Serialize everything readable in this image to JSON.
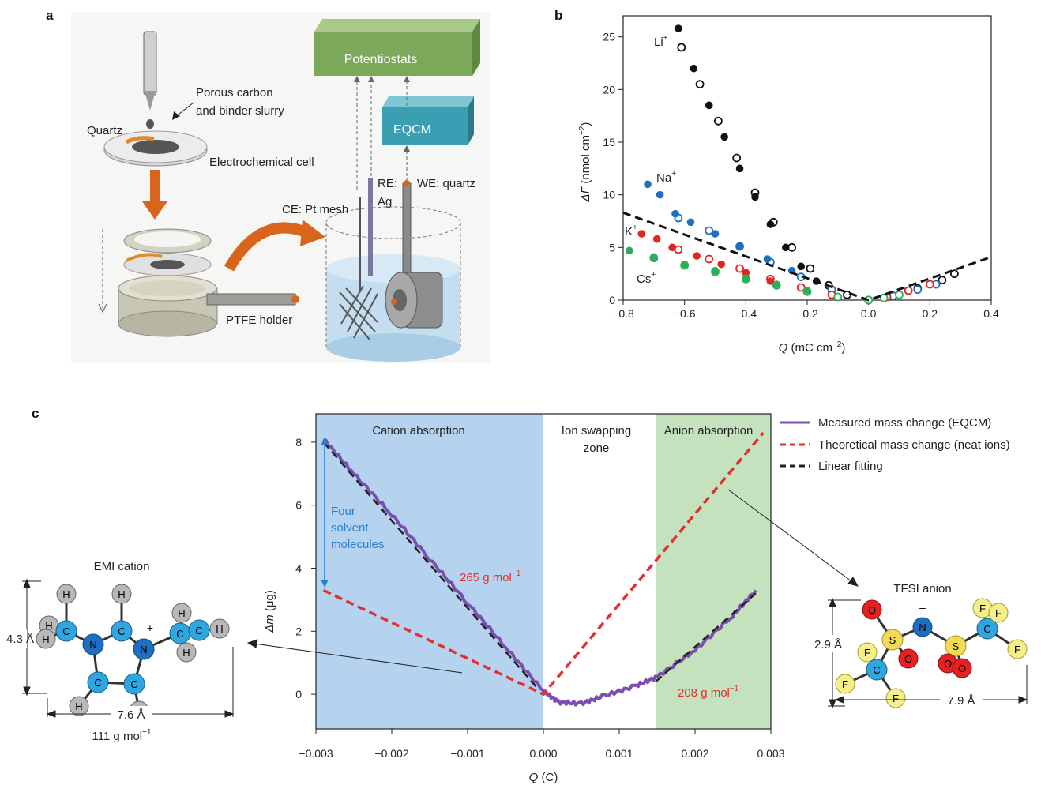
{
  "panels": {
    "a": {
      "letter": "a",
      "labels": {
        "potentiostats": "Potentiostats",
        "eqcm": "EQCM",
        "porous_1": "Porous carbon",
        "porous_2": "and binder slurry",
        "quartz": "Quartz",
        "electrochemical_cell": "Electrochemical cell",
        "ptfe_holder": "PTFE holder",
        "ce": "CE: Pt mesh",
        "re_1": "RE:",
        "re_2": "Ag",
        "we": "WE: quartz"
      },
      "colors": {
        "potentiostats": "#7ca85a",
        "eqcm": "#3a9fb3",
        "arrow": "#d9651c",
        "liquid": "#bfdcee"
      }
    },
    "b": {
      "letter": "b",
      "ion_labels": {
        "li": "Li",
        "na": "Na",
        "k": "K",
        "cs": "Cs",
        "plus": "+"
      },
      "xlabel": {
        "sym": "Q",
        "unit": " (mC cm",
        "exp": "−2",
        "close": ")"
      },
      "ylabel": {
        "sym": "ΔΓ",
        "unit": " (nmol cm",
        "exp": "−2",
        "close": ")"
      }
    },
    "c": {
      "letter": "c",
      "zones": {
        "cation": "Cation absorption",
        "swap_1": "Ion swapping",
        "swap_2": "zone",
        "anion": "Anion absorption"
      },
      "legend": [
        "Measured mass change (EQCM)",
        "Theoretical mass change (neat ions)",
        "Linear fitting"
      ],
      "annotations": {
        "solvent_1": "Four",
        "solvent_2": "solvent",
        "solvent_3": "molecules",
        "mw_cation": "265 g mol",
        "mw_anion": "208 g mol",
        "exp_neg1": "−1"
      },
      "xlabel": {
        "sym": "Q",
        "unit": " (C)"
      },
      "ylabel": {
        "sym": "Δm",
        "unit": " (μg)"
      },
      "emi": {
        "title": "EMI cation",
        "height": "4.3 Å",
        "width": "7.6 Å",
        "mw": "111 g mol",
        "exp": "−1"
      },
      "tfsi": {
        "title": "TFSI anion",
        "height": "2.9 Å",
        "width": "7.9 Å",
        "minus": "–"
      },
      "colors": {
        "cation_zone": "#b5d3ee",
        "anion_zone": "#c4e2bd",
        "measured": "#7b4fb0",
        "theory": "#e2312d",
        "fit": "#222222"
      }
    }
  },
  "chart_data": [
    {
      "type": "scatter",
      "panel": "b",
      "xlabel": "Q (mC cm−2)",
      "ylabel": "ΔΓ (nmol cm−2)",
      "xlim": [
        -0.8,
        0.4
      ],
      "ylim": [
        0,
        27
      ],
      "xticks": [
        "−0.8",
        "−0.6",
        "−0.4",
        "−0.2",
        "0.0",
        "0.2",
        "0.4"
      ],
      "yticks": [
        "0",
        "5",
        "10",
        "15",
        "20",
        "25"
      ],
      "series": [
        {
          "name": "Li+",
          "color": "#111111",
          "filled": [
            [
              -0.62,
              25.8
            ],
            [
              -0.57,
              22.0
            ],
            [
              -0.52,
              18.5
            ],
            [
              -0.47,
              15.5
            ],
            [
              -0.42,
              12.5
            ],
            [
              -0.37,
              9.8
            ],
            [
              -0.32,
              7.2
            ],
            [
              -0.27,
              5.0
            ],
            [
              -0.22,
              3.2
            ],
            [
              -0.17,
              1.8
            ],
            [
              -0.12,
              0.8
            ]
          ],
          "open": [
            [
              -0.61,
              24.0
            ],
            [
              -0.55,
              20.5
            ],
            [
              -0.49,
              17.0
            ],
            [
              -0.43,
              13.5
            ],
            [
              -0.37,
              10.2
            ],
            [
              -0.31,
              7.4
            ],
            [
              -0.25,
              5.0
            ],
            [
              -0.19,
              3.0
            ],
            [
              -0.13,
              1.4
            ],
            [
              -0.07,
              0.5
            ],
            [
              0.0,
              0.0
            ],
            [
              0.08,
              0.4
            ],
            [
              0.16,
              1.1
            ],
            [
              0.24,
              1.9
            ],
            [
              0.28,
              2.5
            ]
          ]
        },
        {
          "name": "Na+",
          "color": "#1f6fc0",
          "filled": [
            [
              -0.72,
              11.0
            ],
            [
              -0.68,
              10.0
            ],
            [
              -0.63,
              8.2
            ],
            [
              -0.58,
              7.4
            ],
            [
              -0.5,
              6.3
            ],
            [
              -0.42,
              5.1
            ],
            [
              -0.33,
              3.9
            ],
            [
              -0.25,
              2.8
            ]
          ],
          "open": [
            [
              -0.62,
              7.8
            ],
            [
              -0.52,
              6.6
            ],
            [
              -0.42,
              5.1
            ],
            [
              -0.32,
              3.6
            ],
            [
              -0.22,
              2.2
            ],
            [
              -0.12,
              1.0
            ],
            [
              0.0,
              0.0
            ],
            [
              0.08,
              0.4
            ],
            [
              0.16,
              1.0
            ],
            [
              0.22,
              1.5
            ]
          ]
        },
        {
          "name": "K+",
          "color": "#e2251d",
          "filled": [
            [
              -0.74,
              6.3
            ],
            [
              -0.69,
              5.8
            ],
            [
              -0.64,
              5.0
            ],
            [
              -0.56,
              4.2
            ],
            [
              -0.48,
              3.4
            ],
            [
              -0.4,
              2.6
            ],
            [
              -0.32,
              1.8
            ]
          ],
          "open": [
            [
              -0.62,
              4.8
            ],
            [
              -0.52,
              3.9
            ],
            [
              -0.42,
              3.0
            ],
            [
              -0.32,
              2.0
            ],
            [
              -0.22,
              1.2
            ],
            [
              -0.12,
              0.5
            ],
            [
              0.0,
              0.0
            ],
            [
              0.06,
              0.3
            ],
            [
              0.13,
              0.9
            ],
            [
              0.2,
              1.5
            ]
          ]
        },
        {
          "name": "Cs+",
          "color": "#2aae5c",
          "filled": [
            [
              -0.78,
              4.7
            ],
            [
              -0.7,
              4.1
            ],
            [
              -0.6,
              3.4
            ],
            [
              -0.5,
              2.8
            ],
            [
              -0.4,
              2.1
            ],
            [
              -0.3,
              1.5
            ],
            [
              -0.2,
              0.9
            ]
          ],
          "open": [
            [
              -0.7,
              4.0
            ],
            [
              -0.6,
              3.3
            ],
            [
              -0.5,
              2.7
            ],
            [
              -0.4,
              2.0
            ],
            [
              -0.3,
              1.4
            ],
            [
              -0.2,
              0.8
            ],
            [
              -0.1,
              0.3
            ],
            [
              0.0,
              0.0
            ],
            [
              0.05,
              0.2
            ],
            [
              0.1,
              0.5
            ]
          ]
        },
        {
          "name": "theory",
          "color": "#111111",
          "dashed": true,
          "points": [
            [
              -0.8,
              8.3
            ],
            [
              0.0,
              0.0
            ],
            [
              0.4,
              4.1
            ]
          ]
        }
      ]
    },
    {
      "type": "line",
      "panel": "c",
      "xlabel": "Q (C)",
      "ylabel": "Δm (μg)",
      "xlim": [
        -0.003,
        0.003
      ],
      "ylim": [
        -1.1,
        8.9
      ],
      "xticks": [
        "−0.003",
        "−0.002",
        "−0.001",
        "0.000",
        "0.001",
        "0.002",
        "0.003"
      ],
      "yticks": [
        "0",
        "2",
        "4",
        "6",
        "8"
      ],
      "zones": [
        {
          "label": "Cation absorption",
          "from": -0.003,
          "to": 0.0
        },
        {
          "label": "Ion swapping zone",
          "from": 0.0,
          "to": 0.00148
        },
        {
          "label": "Anion absorption",
          "from": 0.00148,
          "to": 0.003
        }
      ],
      "series": [
        {
          "name": "Measured mass change (EQCM)",
          "color": "#7b4fb0",
          "points": [
            [
              -0.0029,
              8.1
            ],
            [
              -0.0025,
              7.0
            ],
            [
              -0.002,
              5.7
            ],
            [
              -0.0015,
              4.3
            ],
            [
              -0.001,
              2.9
            ],
            [
              -0.0005,
              1.5
            ],
            [
              0.0,
              0.1
            ],
            [
              0.0002,
              -0.25
            ],
            [
              0.0005,
              -0.3
            ],
            [
              0.0008,
              -0.05
            ],
            [
              0.0012,
              0.25
            ],
            [
              0.0015,
              0.55
            ],
            [
              0.002,
              1.4
            ],
            [
              0.0025,
              2.5
            ],
            [
              0.0028,
              3.3
            ]
          ]
        },
        {
          "name": "Theoretical mass change (neat ions)",
          "color": "#e2312d",
          "dashed": true,
          "points": [
            [
              -0.0029,
              3.3
            ],
            [
              0.0,
              0.0
            ],
            [
              0.0029,
              8.3
            ]
          ]
        },
        {
          "name": "Linear fitting",
          "color": "#222222",
          "dashed": true,
          "points": [
            [
              -0.0029,
              8.0
            ],
            [
              -0.0001,
              0.25
            ]
          ]
        },
        {
          "name": "Linear fitting (anion)",
          "color": "#222222",
          "dashed": true,
          "points": [
            [
              0.00148,
              0.4
            ],
            [
              0.0028,
              3.2
            ]
          ]
        }
      ]
    }
  ]
}
